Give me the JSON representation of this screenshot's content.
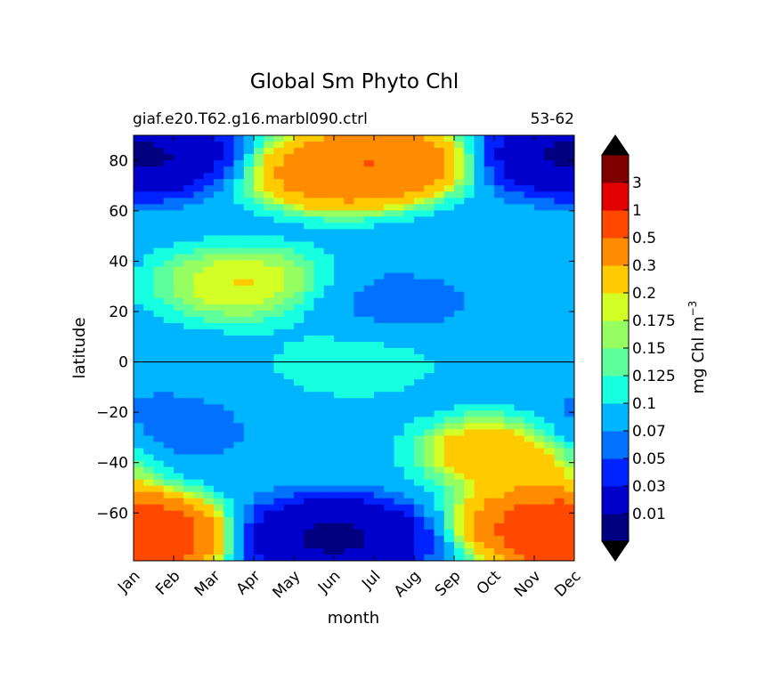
{
  "chart_data": {
    "type": "heatmap",
    "title": "Global Sm Phyto Chl",
    "subtitle_left": "giaf.e20.T62.g16.marbl090.ctrl",
    "subtitle_right": "53-62",
    "xlabel": "month",
    "ylabel": "latitude",
    "x_ticks": [
      "Jan",
      "Feb",
      "Mar",
      "Apr",
      "May",
      "Jun",
      "Jul",
      "Aug",
      "Sep",
      "Oct",
      "Nov",
      "Dec"
    ],
    "xlim": [
      0.5,
      11.5
    ],
    "y_ticks": [
      80,
      60,
      40,
      20,
      0,
      -20,
      -40,
      -60
    ],
    "y_tick_labels": [
      "80",
      "60",
      "40",
      "20",
      "0",
      "−20",
      "−40",
      "−60"
    ],
    "ylim": [
      -79,
      90
    ],
    "colorbar": {
      "label": "mg Chl m",
      "label_exponent": "−3",
      "levels": [
        0,
        0.01,
        0.03,
        0.05,
        0.07,
        0.1,
        0.125,
        0.15,
        0.175,
        0.2,
        0.3,
        0.5,
        1,
        3,
        5
      ],
      "tick_labels": [
        "0.01",
        "0.03",
        "0.05",
        "0.07",
        "0.1",
        "0.125",
        "0.15",
        "0.175",
        "0.2",
        "0.3",
        "0.5",
        "1",
        "3"
      ],
      "colors": [
        "#000080",
        "#0000cd",
        "#0022ff",
        "#0072ff",
        "#00b5ff",
        "#16ffe1",
        "#5cff9b",
        "#95ff62",
        "#d3ff24",
        "#ffcb00",
        "#ff8c00",
        "#ff4800",
        "#e30000",
        "#800000"
      ],
      "under_color": "#000000",
      "over_color": "#000000"
    },
    "features": [
      {
        "name": "north-winter-low",
        "month": 0.6,
        "lat": 82,
        "value": 0.005
      },
      {
        "name": "north-spring-bloom",
        "month": 5.6,
        "lat": 75,
        "value": 0.6
      },
      {
        "name": "north-summer-bloom",
        "month": 6.7,
        "lat": 80,
        "value": 0.7
      },
      {
        "name": "subpolar-spring-bloom",
        "month": 3.2,
        "lat": 31,
        "value": 0.25
      },
      {
        "name": "north-subtropical-gyre",
        "month": 7.0,
        "lat": 23,
        "value": 0.06
      },
      {
        "name": "equatorial-band",
        "month": 6.0,
        "lat": 0,
        "value": 0.12
      },
      {
        "name": "south-subtropical-gyre",
        "month": 1.0,
        "lat": -28,
        "value": 0.05
      },
      {
        "name": "south-spring-bloom",
        "month": 10.0,
        "lat": -36,
        "value": 0.45
      },
      {
        "name": "southern-ocean-winter-low",
        "month": 5.5,
        "lat": -70,
        "value": 0.005
      },
      {
        "name": "southern-ocean-summer-bloom",
        "month": 0.6,
        "lat": -70,
        "value": 1.5
      },
      {
        "name": "southern-ocean-late-bloom",
        "month": 10.8,
        "lat": -63,
        "value": 0.8
      }
    ]
  }
}
